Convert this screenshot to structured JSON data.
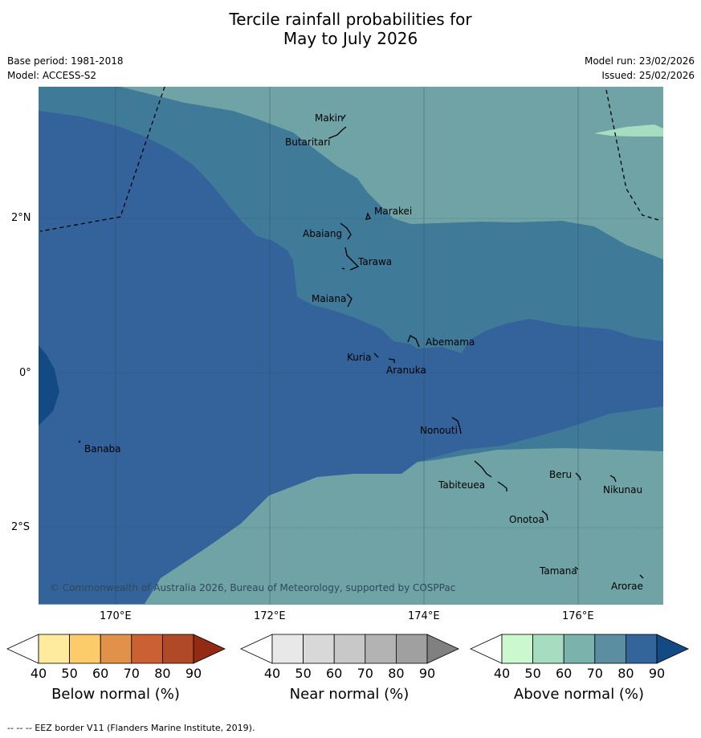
{
  "title": {
    "line1": "Tercile rainfall probabilities for",
    "line2": "May to July 2026"
  },
  "meta": {
    "base_period": "Base period: 1981-2018",
    "model": "Model: ACCESS-S2",
    "model_run": "Model run: 23/02/2026",
    "issued": "Issued: 25/02/2026"
  },
  "map": {
    "copyright": "© Commonwealth of Australia 2026, Bureau of Meteorology, supported by COSPPac",
    "lat_ticks": [
      "2°N",
      "0°",
      "2°S"
    ],
    "lon_ticks": [
      "170°E",
      "172°E",
      "174°E",
      "176°E"
    ],
    "places": {
      "makin": "Makin",
      "butaritari": "Butaritari",
      "marakei": "Marakei",
      "abaiang": "Abaiang",
      "tarawa": "Tarawa",
      "maiana": "Maiana",
      "abemama": "Abemama",
      "kuria": "Kuria",
      "aranuka": "Aranuka",
      "nonouti": "Nonouti",
      "banaba": "Banaba",
      "beru": "Beru",
      "tabiteuea": "Tabiteuea",
      "nikunau": "Nikunau",
      "onotoa": "Onotoa",
      "tamana": "Tamana",
      "arorae": "Arorae"
    }
  },
  "colorbars": {
    "below": {
      "label": "Below normal (%)",
      "ticks": [
        "40",
        "50",
        "60",
        "70",
        "80",
        "90"
      ],
      "colors": [
        "#ffffff",
        "#ffeb9e",
        "#fecb6b",
        "#e2914a",
        "#cb6133",
        "#b04926",
        "#922a14"
      ]
    },
    "near": {
      "label": "Near normal (%)",
      "ticks": [
        "40",
        "50",
        "60",
        "70",
        "80",
        "90"
      ],
      "colors": [
        "#ffffff",
        "#e8e8e8",
        "#d8d8d8",
        "#c8c8c8",
        "#b3b3b3",
        "#a0a0a0",
        "#808080"
      ]
    },
    "above": {
      "label": "Above normal (%)",
      "ticks": [
        "40",
        "50",
        "60",
        "70",
        "80",
        "90"
      ],
      "colors": [
        "#ffffff",
        "#ccf8d0",
        "#a6dcc0",
        "#7bb3ac",
        "#5b8ea0",
        "#34659a",
        "#134a84"
      ]
    }
  },
  "footer": "--  --  -- EEZ border V11 (Flanders Marine Institute, 2019)."
}
